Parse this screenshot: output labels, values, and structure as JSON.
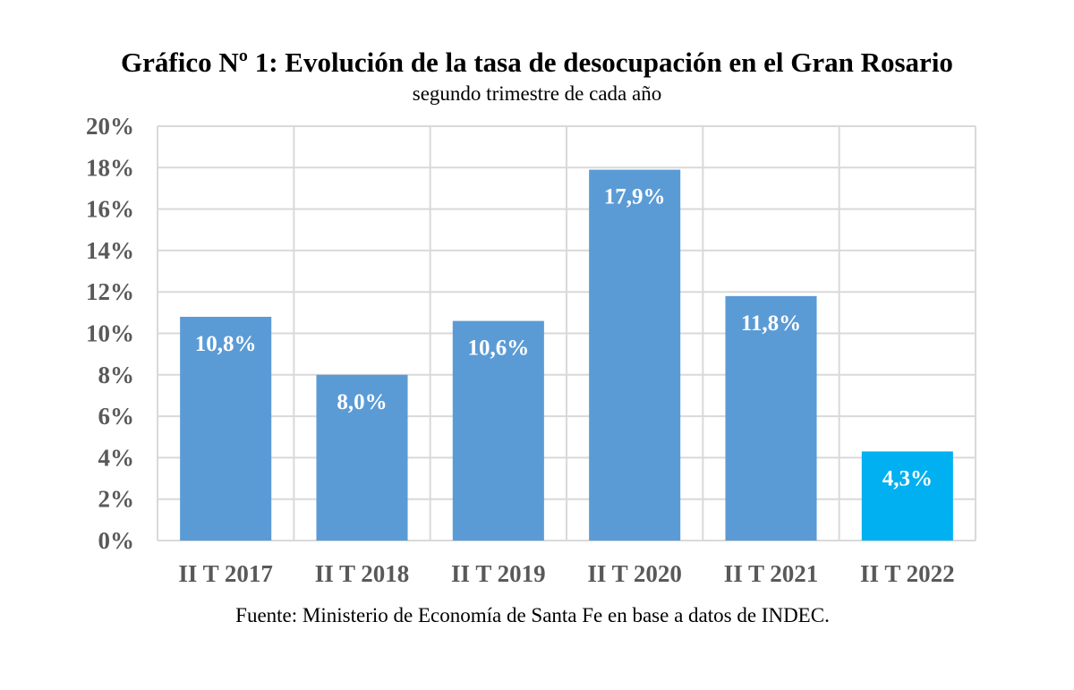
{
  "chart_data": {
    "type": "bar",
    "title": "Gráfico Nº 1: Evolución de la tasa de desocupación en el Gran Rosario",
    "subtitle": "segundo trimestre de cada año",
    "categories": [
      "II T 2017",
      "II T 2018",
      "II T 2019",
      "II T 2020",
      "II T 2021",
      "II T 2022"
    ],
    "values": [
      10.8,
      8.0,
      10.6,
      17.9,
      11.8,
      4.3
    ],
    "data_labels": [
      "10,8%",
      "8,0%",
      "10,6%",
      "17,9%",
      "11,8%",
      "4,3%"
    ],
    "colors": [
      "#5b9bd5",
      "#5b9bd5",
      "#5b9bd5",
      "#5b9bd5",
      "#5b9bd5",
      "#00b0f0"
    ],
    "xlabel": "",
    "ylabel": "",
    "ylim": [
      0,
      20
    ],
    "yticks": [
      0,
      2,
      4,
      6,
      8,
      10,
      12,
      14,
      16,
      18,
      20
    ],
    "ytick_labels": [
      "0%",
      "2%",
      "4%",
      "6%",
      "8%",
      "10%",
      "12%",
      "14%",
      "16%",
      "18%",
      "20%"
    ],
    "grid": true,
    "legend": "none",
    "source": "Fuente: Ministerio de Economía de Santa Fe en base a datos de INDEC."
  }
}
